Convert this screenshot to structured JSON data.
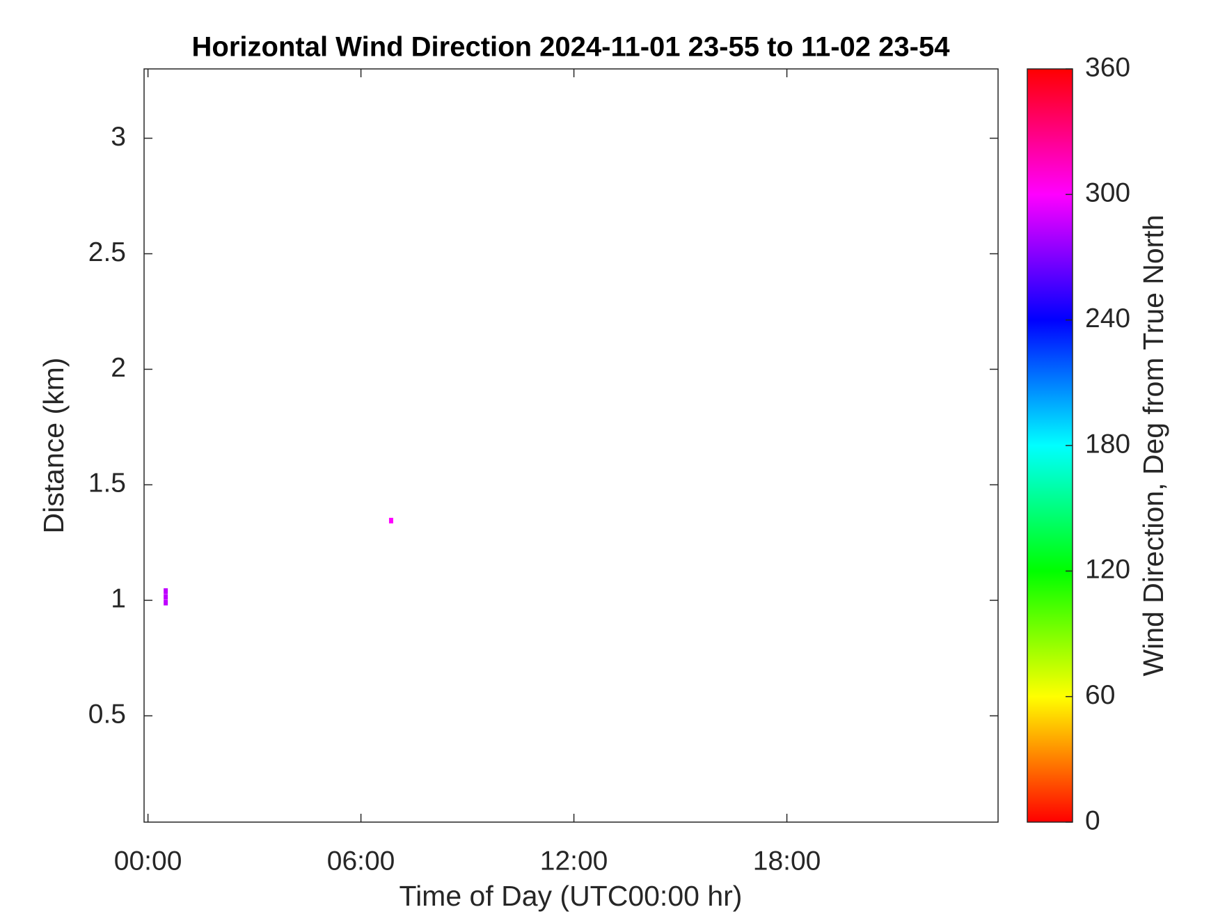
{
  "chart_data": {
    "type": "heatmap",
    "title": "Horizontal Wind Direction 2024-11-01 23-55 to 11-02 23-54",
    "x_label": "Time of Day (UTC00:00 hr)",
    "y_label": "Distance (km)",
    "colorbar_label": "Wind Direction, Deg from True North",
    "x": [
      0.5,
      0.5,
      0.5,
      6.85
    ],
    "y": [
      0.99,
      1.015,
      1.04,
      1.345
    ],
    "values": [
      285,
      285,
      285,
      300
    ],
    "xlim": [
      -0.11,
      23.95
    ],
    "xticks": [
      {
        "value": 0,
        "label": "00:00"
      },
      {
        "value": 6,
        "label": "06:00"
      },
      {
        "value": 12,
        "label": "12:00"
      },
      {
        "value": 18,
        "label": "18:00"
      }
    ],
    "ylim": [
      0.04,
      3.3
    ],
    "yticks": [
      0.5,
      1,
      1.5,
      2,
      2.5,
      3
    ],
    "clim": [
      0,
      360
    ],
    "cticks": [
      0,
      60,
      120,
      180,
      240,
      300,
      360
    ],
    "colormap": "hsv"
  }
}
